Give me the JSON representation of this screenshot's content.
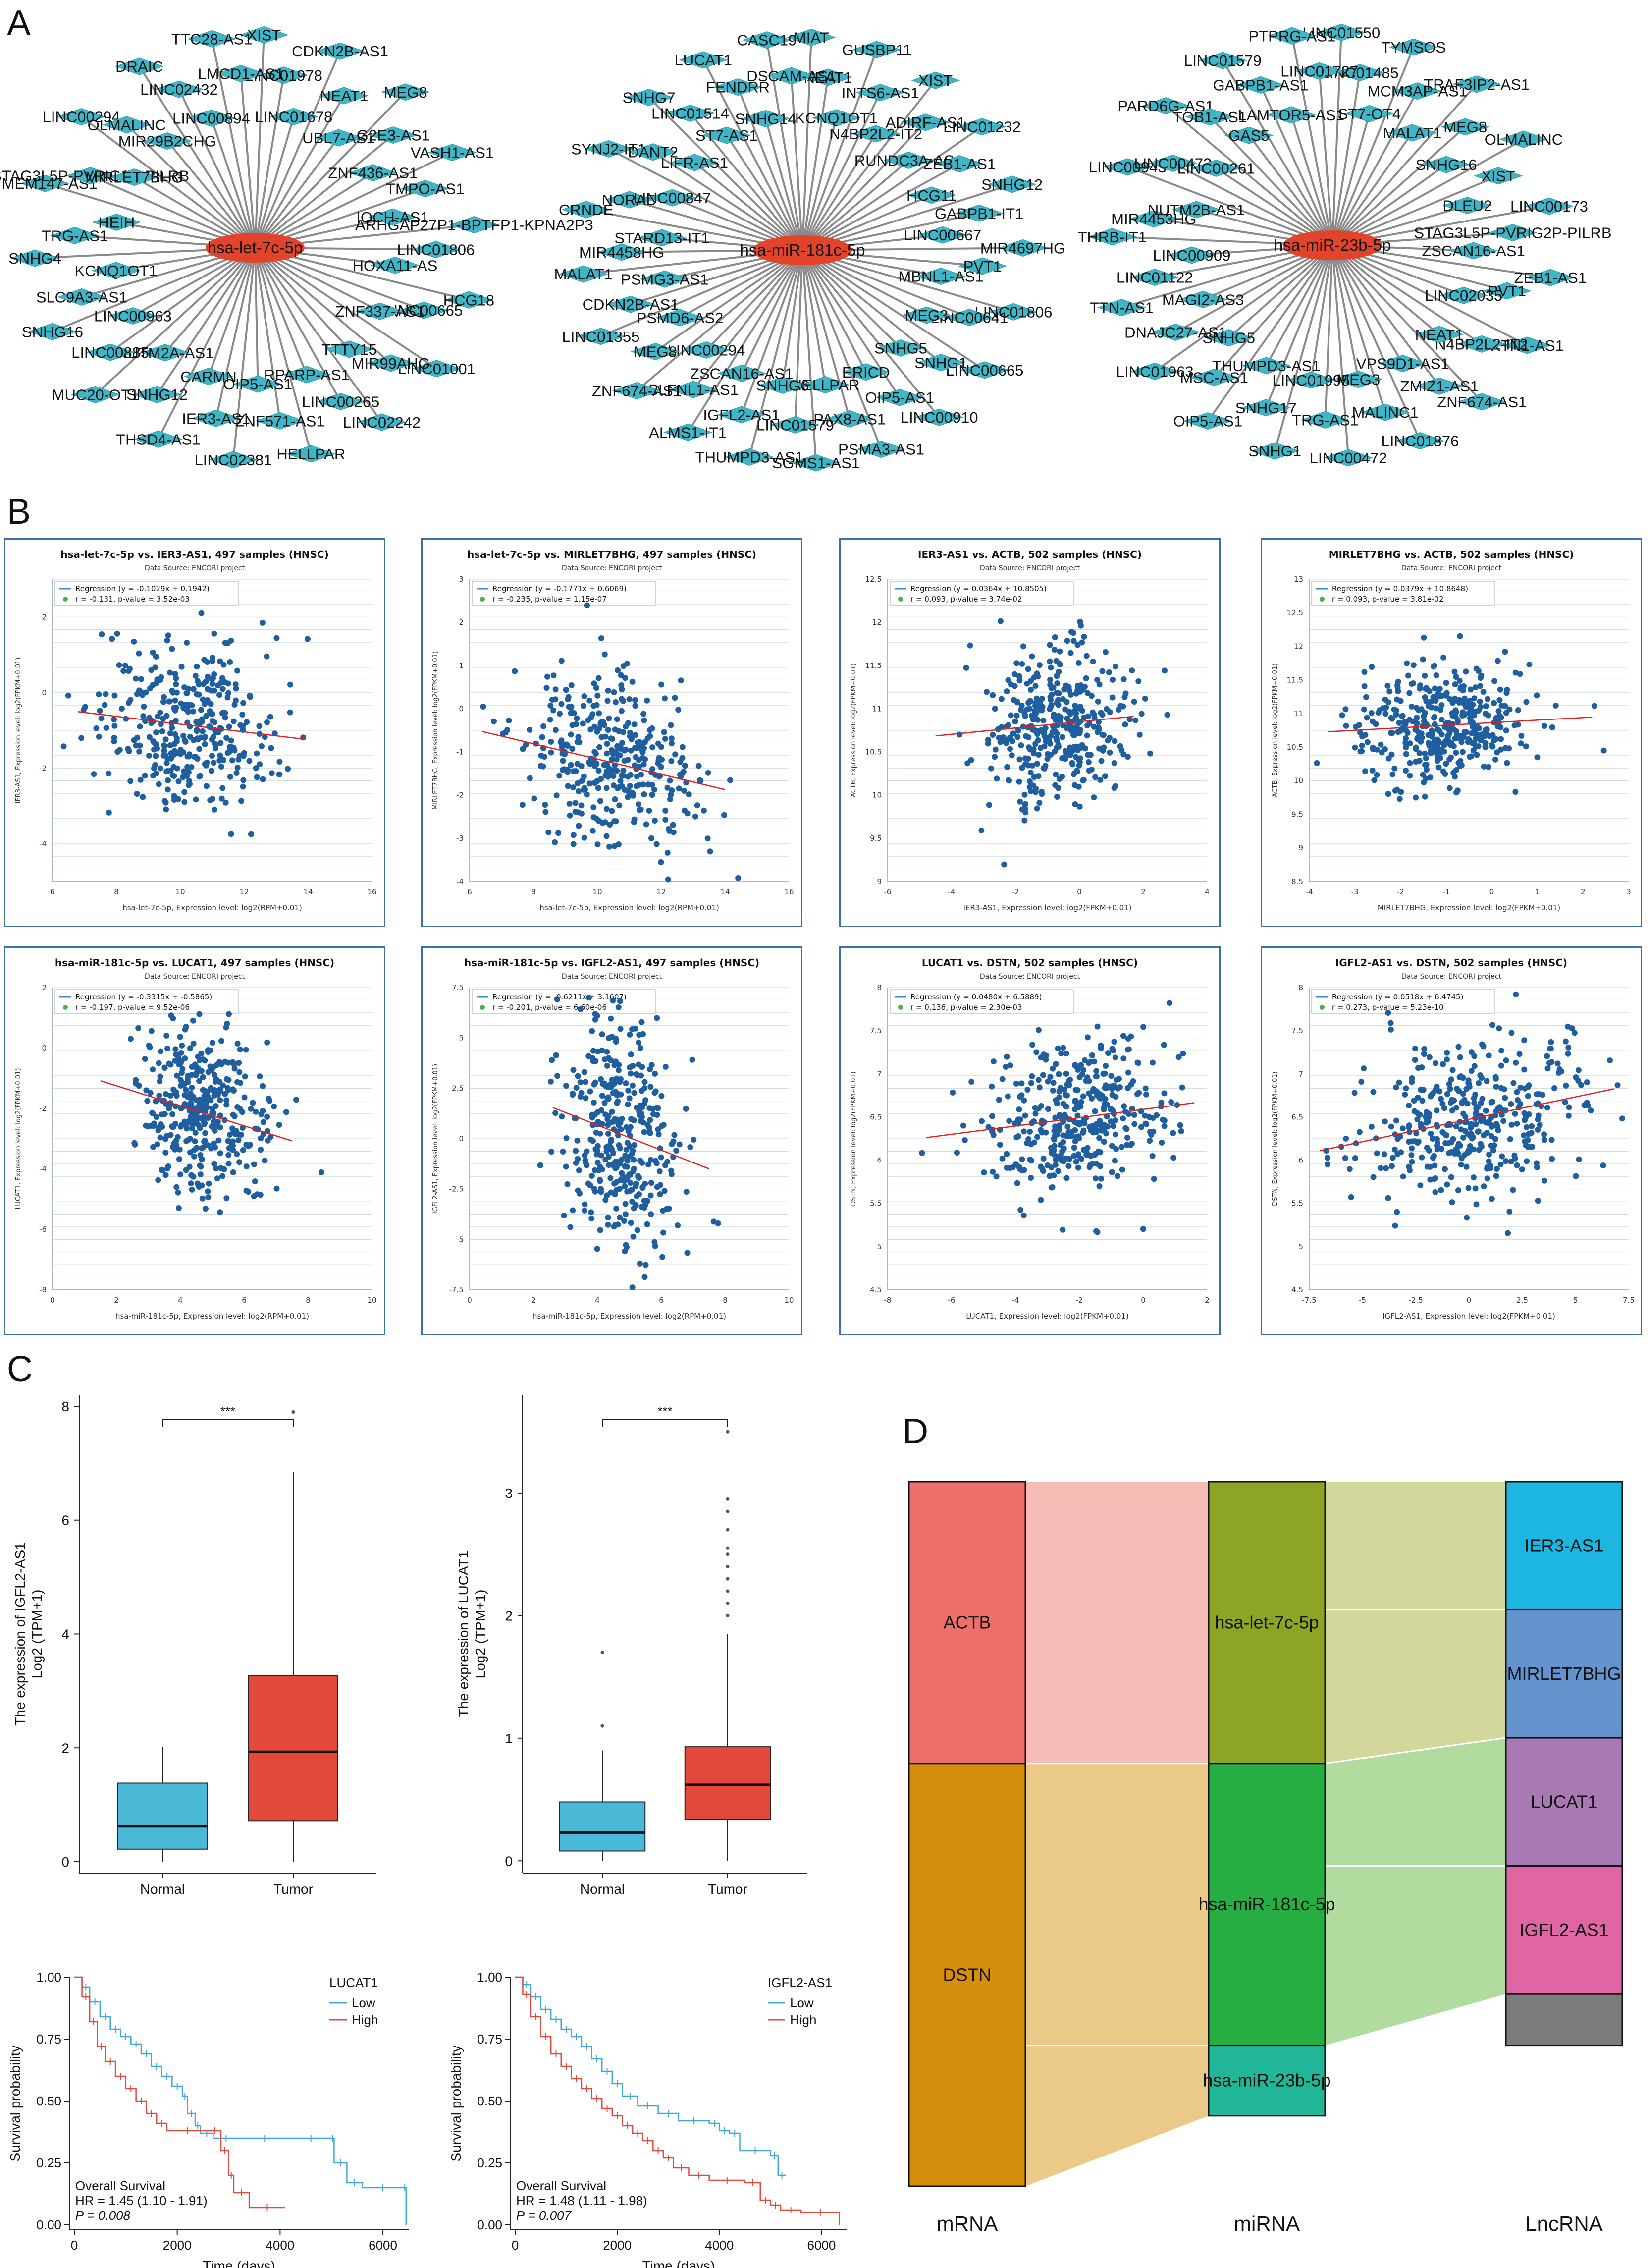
{
  "panel_labels": {
    "a": "A",
    "b": "B",
    "c": "C",
    "d": "D"
  },
  "networks": [
    {
      "center": "hsa-let-7c-5p",
      "nodes": [
        "XIST",
        "LINC01978",
        "LINC01678",
        "CDKN2B-AS1",
        "NEAT1",
        "UBL7-AS1",
        "MEG8",
        "G2E3-AS1",
        "ZNF436-AS1",
        "VASH1-AS1",
        "TMPO-AS1",
        "IQCH-AS1",
        "ARHGAP27P1-BPTFP1-KPNA2P3",
        "LINC01806",
        "HOXA11-AS",
        "HCG18",
        "LINC00665",
        "ZNF337-AS1",
        "LINC01001",
        "MIR99AHG",
        "TTTY15",
        "LINC02242",
        "LINC00265",
        "RPARP-AS1",
        "HELLPAR",
        "ZNF571-AS1",
        "OIP5-AS1",
        "LINC02381",
        "IER3-AS1",
        "CARMN",
        "THSD4-AS1",
        "SNHG12",
        "NUTM2A-AS1",
        "MUC20-OT1",
        "LINC00885",
        "LINC00963",
        "SNHG16",
        "SLC9A3-AS1",
        "KCNQ1OT1",
        "SNHG4",
        "TRG-AS1",
        "HEIH",
        "TMEM147-AS1",
        "STAG3L5P-PVRIG2P-PILRB",
        "MIRLET7BHG",
        "LINC00294",
        "OLMALINC",
        "MIR29B2CHG",
        "DRAIC",
        "LINC02432",
        "LINC00894",
        "TTC28-AS1",
        "LMCD1-AS1"
      ]
    },
    {
      "center": "hsa-miR-181c-5p",
      "nodes": [
        "MIAT",
        "NEAT1",
        "KCNQ1OT1",
        "GUSBP11",
        "INTS6-AS1",
        "N4BP2L2-IT2",
        "XIST",
        "ADIRF-AS1",
        "RUNDC3A-AS1",
        "LINC01232",
        "ZEB1-AS1",
        "HCG11",
        "SNHG12",
        "GABPB1-IT1",
        "LINC00667",
        "MIR4697HG",
        "PVT1",
        "MBNL1-AS1",
        "LINC01806",
        "LINC00641",
        "MEG3",
        "LINC00665",
        "SNHG1",
        "SNHG5",
        "LINC00910",
        "OIP5-AS1",
        "ERICD",
        "PSMA3-AS1",
        "PAX8-AS1",
        "HELLPAR",
        "SGMS1-AS1",
        "LINC01579",
        "SNHG6",
        "THUMPD3-AS1",
        "IGFL2-AS1",
        "ZSCAN16-AS1",
        "ALMS1-IT1",
        "SLFNL1-AS1",
        "LINC00294",
        "ZNF674-AS1",
        "MEG8",
        "PSMD6-AS2",
        "LINC01355",
        "CDKN2B-AS1",
        "PSMG3-AS1",
        "MALAT1",
        "MIR4458HG",
        "STARD13-IT1",
        "CRNDE",
        "NORAD",
        "LINC00847",
        "SYNJ2-IT1",
        "DANT2",
        "LIFR-AS1",
        "SNHG7",
        "LINC01514",
        "ST7-AS1",
        "LUCAT1",
        "FENDRR",
        "SNHG14",
        "CASC19",
        "DSCAM-AS1"
      ]
    },
    {
      "center": "hsa-miR-23b-5p",
      "nodes": [
        "LINC01550",
        "LINC01485",
        "ST7-OT4",
        "TYMSOS",
        "MCM3AP-AS1",
        "MALAT1",
        "TRAF3IP2-AS1",
        "MEG8",
        "SNHG16",
        "OLMALINC",
        "XIST",
        "DLEU2",
        "LINC00173",
        "STAG3L5P-PVRIG2P-PILRB",
        "ZSCAN16-AS1",
        "ZEB1-AS1",
        "PVT1",
        "LINC02035",
        "KTN1-AS1",
        "N4BP2L2-IT2",
        "NEAT1",
        "ZNF674-AS1",
        "ZMIZ1-AS1",
        "VPS9D1-AS1",
        "LINC01876",
        "MALINC1",
        "MEG3",
        "LINC00472",
        "TRG-AS1",
        "LINC01995",
        "SNHG1",
        "SNHG17",
        "THUMPD3-AS1",
        "OIP5-AS1",
        "MSC-AS1",
        "SNHG5",
        "LINC01963",
        "DNAJC27-AS1",
        "MAGI2-AS3",
        "TTN-AS1",
        "LINC01122",
        "LINC00909",
        "THRB-IT1",
        "MIR4453HG",
        "NUTM2B-AS1",
        "LINC00943",
        "LINC00473",
        "LINC00261",
        "PARD6G-AS1",
        "TOB1-AS1",
        "GAS5",
        "LINC01579",
        "GABPB1-AS1",
        "LAMTOR5-AS1",
        "PTPRG-AS1",
        "LINC01727"
      ]
    }
  ],
  "scatter_source": "Data Source: ENCORI project",
  "chart_data": [
    {
      "type": "scatter",
      "title": "hsa-let-7c-5p vs. IER3-AS1, 497 samples (HNSC)",
      "regression": "Regression (y = -0.1029x + 0.1942)",
      "stat": "r = -0.131, p-value = 3.52e-03",
      "xlabel": "hsa-let-7c-5p, Expression level: log2(RPM+0.01)",
      "ylabel": "IER3-AS1, Expression level: log2(FPKM+0.01)",
      "xlim": [
        6,
        16
      ],
      "ylim": [
        -5,
        3
      ],
      "xticks": [
        6,
        8,
        10,
        12,
        14,
        16
      ],
      "yticks": [
        -4,
        -2,
        0,
        2
      ],
      "slope": -0.1029,
      "intercept": 0.1942,
      "x_center": 10.2,
      "x_sd": 1.4,
      "y_sd": 1.1,
      "fit_x": [
        6.8,
        13.9
      ],
      "n": 360
    },
    {
      "type": "scatter",
      "title": "hsa-let-7c-5p vs. MIRLET7BHG, 497 samples (HNSC)",
      "regression": "Regression (y = -0.1771x + 0.6069)",
      "stat": "r = -0.235, p-value = 1.15e-07",
      "xlabel": "hsa-let-7c-5p, Expression level: log2(RPM+0.01)",
      "ylabel": "MIRLET7BHG, Expression level: log2(FPKM+0.01)",
      "xlim": [
        6,
        16
      ],
      "ylim": [
        -4,
        3
      ],
      "xticks": [
        6,
        8,
        10,
        12,
        14,
        16
      ],
      "yticks": [
        -4,
        -3,
        -2,
        -1,
        0,
        1,
        2,
        3
      ],
      "slope": -0.1771,
      "intercept": 0.6069,
      "x_center": 10.3,
      "x_sd": 1.4,
      "y_sd": 0.95,
      "fit_x": [
        6.4,
        14
      ],
      "n": 360
    },
    {
      "type": "scatter",
      "title": "IER3-AS1 vs. ACTB, 502 samples (HNSC)",
      "regression": "Regression (y = 0.0364x + 10.8505)",
      "stat": "r = 0.093, p-value = 3.74e-02",
      "xlabel": "IER3-AS1, Expression level: log2(FPKM+0.01)",
      "ylabel": "ACTB, Expression level: log2(FPKM+0.01)",
      "xlim": [
        -6,
        4
      ],
      "ylim": [
        9,
        12.5
      ],
      "xticks": [
        -6,
        -4,
        -2,
        0,
        2,
        4
      ],
      "yticks": [
        9,
        9.5,
        10,
        10.5,
        11,
        11.5,
        12,
        12.5
      ],
      "slope": 0.0364,
      "intercept": 10.8505,
      "x_center": -0.7,
      "x_sd": 1.1,
      "y_sd": 0.45,
      "fit_x": [
        -4.5,
        1.7
      ],
      "n": 380
    },
    {
      "type": "scatter",
      "title": "MIRLET7BHG vs. ACTB, 502 samples (HNSC)",
      "regression": "Regression (y = 0.0379x + 10.8648)",
      "stat": "r = 0.093, p-value = 3.81e-02",
      "xlabel": "MIRLET7BHG, Expression level: log2(FPKM+0.01)",
      "ylabel": "ACTB, Expression level: log2(FPKM+0.01)",
      "xlim": [
        -4,
        3
      ],
      "ylim": [
        8.5,
        13
      ],
      "xticks": [
        -4,
        -3,
        -2,
        -1,
        0,
        1,
        2,
        3
      ],
      "yticks": [
        8.5,
        9,
        9.5,
        10,
        10.5,
        11,
        11.5,
        12,
        12.5,
        13
      ],
      "slope": 0.0379,
      "intercept": 10.8648,
      "x_center": -1.1,
      "x_sd": 1.0,
      "y_sd": 0.45,
      "fit_x": [
        -3.6,
        2.2
      ],
      "n": 400
    },
    {
      "type": "scatter",
      "title": "hsa-miR-181c-5p vs. LUCAT1, 497 samples (HNSC)",
      "regression": "Regression (y = -0.3315x + -0.5865)",
      "stat": "r = -0.197, p-value = 9.52e-06",
      "xlabel": "hsa-miR-181c-5p, Expression level: log2(RPM+0.01)",
      "ylabel": "LUCAT1, Expression level: log2(FPKM+0.01)",
      "xlim": [
        0,
        10
      ],
      "ylim": [
        -8,
        2
      ],
      "xticks": [
        0,
        2,
        4,
        6,
        8,
        10
      ],
      "yticks": [
        -8,
        -6,
        -4,
        -2,
        0,
        2
      ],
      "slope": -0.3315,
      "intercept": -0.5865,
      "x_center": 4.7,
      "x_sd": 0.95,
      "y_sd": 1.4,
      "fit_x": [
        1.5,
        7.5
      ],
      "n": 380
    },
    {
      "type": "scatter",
      "title": "hsa-miR-181c-5p vs. IGFL2-AS1, 497 samples (HNSC)",
      "regression": "Regression (y = -0.6211x + 3.1607)",
      "stat": "r = -0.201, p-value = 6.60e-06",
      "xlabel": "hsa-miR-181c-5p, Expression level: log2(RPM+0.01)",
      "ylabel": "IGFL2-AS1, Expression level: log2(FPKM+0.01)",
      "xlim": [
        0,
        10
      ],
      "ylim": [
        -7.5,
        7.5
      ],
      "xticks": [
        0,
        2,
        4,
        6,
        8,
        10
      ],
      "yticks": [
        -7.5,
        -5,
        -2.5,
        0,
        2.5,
        5,
        7.5
      ],
      "slope": -0.6211,
      "intercept": 3.1607,
      "x_center": 4.7,
      "x_sd": 0.95,
      "y_sd": 2.8,
      "fit_x": [
        2.6,
        7.5
      ],
      "n": 380
    },
    {
      "type": "scatter",
      "title": "LUCAT1 vs. DSTN, 502 samples (HNSC)",
      "regression": "Regression (y = 0.0480x + 6.5889)",
      "stat": "r = 0.136, p-value = 2.30e-03",
      "xlabel": "LUCAT1, Expression level: log2(FPKM+0.01)",
      "ylabel": "DSTN, Expression level: log2(FPKM+0.01)",
      "xlim": [
        -8,
        2
      ],
      "ylim": [
        4.5,
        8
      ],
      "xticks": [
        -8,
        -6,
        -4,
        -2,
        0,
        2
      ],
      "yticks": [
        4.5,
        5,
        5.5,
        6,
        6.5,
        7,
        7.5,
        8
      ],
      "slope": 0.048,
      "intercept": 6.5889,
      "x_center": -2.1,
      "x_sd": 1.4,
      "y_sd": 0.45,
      "fit_x": [
        -6.8,
        1.6
      ],
      "n": 400
    },
    {
      "type": "scatter",
      "title": "IGFL2-AS1 vs. DSTN, 502 samples (HNSC)",
      "regression": "Regression (y = 0.0518x + 6.4745)",
      "stat": "r = 0.273, p-value = 5.23e-10",
      "xlabel": "IGFL2-AS1, Expression level: log2(FPKM+0.01)",
      "ylabel": "DSTN, Expression level: log2(FPKM+0.01)",
      "xlim": [
        -7.5,
        7.5
      ],
      "ylim": [
        4.5,
        8
      ],
      "xticks": [
        -7.5,
        -5,
        -2.5,
        0,
        2.5,
        5,
        7.5
      ],
      "yticks": [
        4.5,
        5,
        5.5,
        6,
        6.5,
        7,
        7.5,
        8
      ],
      "slope": 0.0518,
      "intercept": 6.4745,
      "x_center": 0.3,
      "x_sd": 2.6,
      "y_sd": 0.45,
      "fit_x": [
        -7,
        6.8
      ],
      "n": 400
    },
    {
      "type": "box",
      "ylabel_top": "The expression of IGFL2-AS1",
      "ylabel_bottom": "Log2 (TPM+1)",
      "categories": [
        "Normal",
        "Tumor"
      ],
      "significance": "***",
      "ylim": [
        -0.2,
        8.2
      ],
      "yticks": [
        0,
        2,
        4,
        6,
        8
      ],
      "colors": [
        "#4ab9d8",
        "#e2493b"
      ],
      "boxes": [
        {
          "q1": 0.22,
          "median": 0.62,
          "q3": 1.38,
          "lo": 0,
          "hi": 2.02,
          "outliers": []
        },
        {
          "q1": 0.72,
          "median": 1.93,
          "q3": 3.27,
          "lo": 0,
          "hi": 6.85,
          "outliers": [
            7.9
          ]
        }
      ]
    },
    {
      "type": "box",
      "ylabel_top": "The expression of LUCAT1",
      "ylabel_bottom": "Log2 (TPM+1)",
      "categories": [
        "Normal",
        "Tumor"
      ],
      "significance": "***",
      "ylim": [
        -0.1,
        3.8
      ],
      "yticks": [
        0,
        1,
        2,
        3
      ],
      "colors": [
        "#4ab9d8",
        "#e2493b"
      ],
      "boxes": [
        {
          "q1": 0.08,
          "median": 0.23,
          "q3": 0.48,
          "lo": 0,
          "hi": 0.9,
          "outliers": [
            1.1,
            1.7
          ]
        },
        {
          "q1": 0.34,
          "median": 0.62,
          "q3": 0.93,
          "lo": 0,
          "hi": 1.85,
          "outliers": [
            2.0,
            2.1,
            2.2,
            2.3,
            2.4,
            2.5,
            2.55,
            2.7,
            2.85,
            2.95,
            3.5
          ]
        }
      ]
    },
    {
      "type": "km",
      "legend_title": "LUCAT1",
      "groups": [
        "Low",
        "High"
      ],
      "colors": [
        "#3fa8d8",
        "#e2493b"
      ],
      "text1": "Overall Survival",
      "text2": "HR = 1.45 (1.10 - 1.91)",
      "text3": "P = 0.008",
      "xlabel": "Time (days)",
      "ylabel": "Survival probability",
      "xlim": [
        0,
        6500
      ],
      "xticks": [
        0,
        2000,
        4000,
        6000
      ],
      "yticks": [
        "0.00",
        "0.25",
        "0.50",
        "0.75",
        "1.00"
      ],
      "low": [
        [
          0,
          1
        ],
        [
          150,
          0.96
        ],
        [
          300,
          0.9
        ],
        [
          500,
          0.84
        ],
        [
          700,
          0.79
        ],
        [
          900,
          0.76
        ],
        [
          1100,
          0.73
        ],
        [
          1300,
          0.69
        ],
        [
          1500,
          0.64
        ],
        [
          1700,
          0.6
        ],
        [
          1900,
          0.56
        ],
        [
          2100,
          0.52
        ],
        [
          2200,
          0.45
        ],
        [
          2350,
          0.4
        ],
        [
          2450,
          0.37
        ],
        [
          2700,
          0.35
        ],
        [
          3200,
          0.35
        ],
        [
          4200,
          0.35
        ],
        [
          5000,
          0.35
        ],
        [
          5050,
          0.25
        ],
        [
          5300,
          0.17
        ],
        [
          5600,
          0.15
        ],
        [
          6400,
          0.15
        ],
        [
          6450,
          0
        ]
      ],
      "high": [
        [
          0,
          1
        ],
        [
          150,
          0.92
        ],
        [
          300,
          0.82
        ],
        [
          450,
          0.72
        ],
        [
          600,
          0.66
        ],
        [
          800,
          0.6
        ],
        [
          1000,
          0.55
        ],
        [
          1200,
          0.5
        ],
        [
          1400,
          0.45
        ],
        [
          1600,
          0.41
        ],
        [
          1800,
          0.38
        ],
        [
          2600,
          0.38
        ],
        [
          2850,
          0.3
        ],
        [
          3000,
          0.2
        ],
        [
          3100,
          0.13
        ],
        [
          3400,
          0.07
        ],
        [
          4100,
          0.07
        ]
      ]
    },
    {
      "type": "km",
      "legend_title": "IGFL2-AS1",
      "groups": [
        "Low",
        "High"
      ],
      "colors": [
        "#3fa8d8",
        "#e2493b"
      ],
      "text1": "Overall Survival",
      "text2": "HR = 1.48 (1.11 - 1.98)",
      "text3": "P = 0.007",
      "xlabel": "Time (days)",
      "ylabel": "Survival probability",
      "xlim": [
        0,
        6500
      ],
      "xticks": [
        0,
        2000,
        4000,
        6000
      ],
      "yticks": [
        "0.00",
        "0.25",
        "0.50",
        "0.75",
        "1.00"
      ],
      "low": [
        [
          0,
          1
        ],
        [
          150,
          0.97
        ],
        [
          300,
          0.92
        ],
        [
          500,
          0.87
        ],
        [
          700,
          0.83
        ],
        [
          900,
          0.79
        ],
        [
          1100,
          0.76
        ],
        [
          1300,
          0.72
        ],
        [
          1500,
          0.67
        ],
        [
          1700,
          0.62
        ],
        [
          1900,
          0.57
        ],
        [
          2100,
          0.52
        ],
        [
          2400,
          0.48
        ],
        [
          2800,
          0.45
        ],
        [
          3200,
          0.42
        ],
        [
          3800,
          0.41
        ],
        [
          4000,
          0.38
        ],
        [
          4200,
          0.37
        ],
        [
          4400,
          0.3
        ],
        [
          5000,
          0.28
        ],
        [
          5150,
          0.2
        ],
        [
          5300,
          0.2
        ]
      ],
      "high": [
        [
          0,
          1
        ],
        [
          150,
          0.93
        ],
        [
          300,
          0.84
        ],
        [
          500,
          0.76
        ],
        [
          700,
          0.69
        ],
        [
          900,
          0.64
        ],
        [
          1100,
          0.59
        ],
        [
          1300,
          0.55
        ],
        [
          1500,
          0.51
        ],
        [
          1700,
          0.47
        ],
        [
          1900,
          0.44
        ],
        [
          2100,
          0.4
        ],
        [
          2300,
          0.37
        ],
        [
          2500,
          0.34
        ],
        [
          2700,
          0.3
        ],
        [
          2900,
          0.27
        ],
        [
          3100,
          0.23
        ],
        [
          3400,
          0.2
        ],
        [
          3800,
          0.18
        ],
        [
          4500,
          0.17
        ],
        [
          4800,
          0.1
        ],
        [
          5000,
          0.08
        ],
        [
          5200,
          0.06
        ],
        [
          5600,
          0.05
        ],
        [
          6350,
          0
        ]
      ]
    },
    {
      "type": "sankey",
      "axis_labels": [
        "mRNA",
        "miRNA",
        "LncRNA"
      ],
      "mrna": [
        {
          "label": "ACTB",
          "color": "#ee6f6b",
          "weight": 2
        },
        {
          "label": "DSTN",
          "color": "#d68f0c",
          "weight": 3
        }
      ],
      "mirna": [
        {
          "label": "hsa-let-7c-5p",
          "color": "#8da524",
          "weight": 2
        },
        {
          "label": "hsa-miR-181c-5p",
          "color": "#26ae42",
          "weight": 2
        },
        {
          "label": "hsa-miR-23b-5p",
          "color": "#22b698",
          "weight": 0.5
        }
      ],
      "lnc": [
        {
          "label": "IER3-AS1",
          "color": "#1db6e0",
          "weight": 1
        },
        {
          "label": "MIRLET7BHG",
          "color": "#6493ce",
          "weight": 1
        },
        {
          "label": "LUCAT1",
          "color": "#a979b4",
          "weight": 1
        },
        {
          "label": "IGFL2-AS1",
          "color": "#e066a3",
          "weight": 1
        },
        {
          "label": "",
          "color": "#7c7c7c",
          "weight": 0.4
        }
      ],
      "flow_colors": [
        "#f5bdb5",
        "#ebc989",
        "#d4d79c",
        "#b2dba0"
      ]
    }
  ]
}
